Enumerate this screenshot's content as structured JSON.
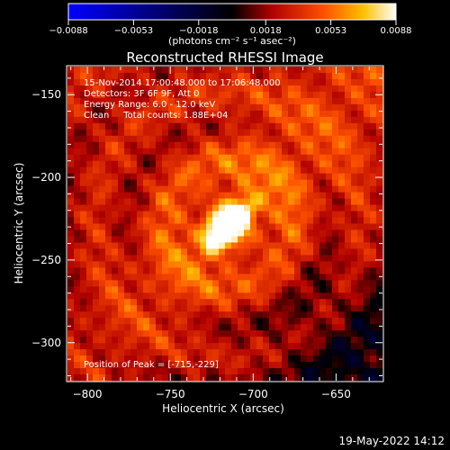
{
  "chart_data": {
    "type": "heatmap",
    "title": "Reconstructed RHESSI Image",
    "xlabel": "Heliocentric X (arcsec)",
    "ylabel": "Heliocentric Y (arcsec)",
    "xlim": [
      -812,
      -622
    ],
    "ylim": [
      -323,
      -133
    ],
    "x_ticks": [
      -800,
      -750,
      -700,
      -650
    ],
    "y_ticks": [
      -150,
      -200,
      -250,
      -300
    ],
    "x_tick_labels": [
      "−800",
      "−750",
      "−700",
      "−650"
    ],
    "y_tick_labels": [
      "−150",
      "−200",
      "−250",
      "−300"
    ],
    "colorbar": {
      "range": [
        -0.0088,
        0.0088
      ],
      "ticks": [
        -0.0088,
        -0.0053,
        -0.0018,
        0.0018,
        0.0053,
        0.0088
      ],
      "tick_labels": [
        "−0.0088",
        "−0.0053",
        "−0.0018",
        "0.0018",
        "0.0053",
        "0.0088"
      ],
      "unit_label": "(photons cm⁻² s⁻¹ asec⁻²)",
      "colors": [
        "#0000ff",
        "#000000",
        "#ff0000",
        "#ffa500",
        "#ffffff"
      ]
    },
    "annotations": [
      "15-Nov-2014 17:00:48.000 to 17:06:48.000",
      "Detectors: 3F 6F 9F, Att 0",
      "Energy Range: 6.0 - 12.0 keV",
      "Clean     Total counts: 1.88E+04"
    ],
    "peak_label": "Position of Peak = [-715,-229]",
    "peak": [
      -715,
      -229
    ],
    "peak_value": 0.0088
  },
  "footer": {
    "date": "19-May-2022 14:12"
  }
}
